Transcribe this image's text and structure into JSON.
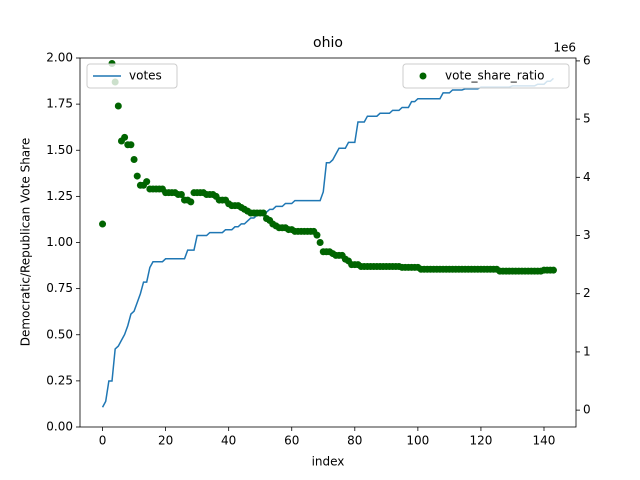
{
  "chart_data": {
    "type": "line",
    "title": "ohio",
    "x_label": "index",
    "y_label": "Democratic/Republican Vote Share",
    "y2_offset_label": "1e6",
    "x": [
      0,
      1,
      2,
      3,
      4,
      5,
      6,
      7,
      8,
      9,
      10,
      11,
      12,
      13,
      14,
      15,
      16,
      17,
      18,
      19,
      20,
      21,
      22,
      23,
      24,
      25,
      26,
      27,
      28,
      29,
      30,
      31,
      32,
      33,
      34,
      35,
      36,
      37,
      38,
      39,
      40,
      41,
      42,
      43,
      44,
      45,
      46,
      47,
      48,
      49,
      50,
      51,
      52,
      53,
      54,
      55,
      56,
      57,
      58,
      59,
      60,
      61,
      62,
      63,
      64,
      65,
      66,
      67,
      68,
      69,
      70,
      71,
      72,
      73,
      74,
      75,
      76,
      77,
      78,
      79,
      80,
      81,
      82,
      83,
      84,
      85,
      86,
      87,
      88,
      89,
      90,
      91,
      92,
      93,
      94,
      95,
      96,
      97,
      98,
      99,
      100,
      101,
      102,
      103,
      104,
      105,
      106,
      107,
      108,
      109,
      110,
      111,
      112,
      113,
      114,
      115,
      116,
      117,
      118,
      119,
      120,
      121,
      122,
      123,
      124,
      125,
      126,
      127,
      128,
      129,
      130,
      131,
      132,
      133,
      134,
      135,
      136,
      137,
      138,
      139,
      140,
      141,
      142,
      143
    ],
    "xlim": [
      -7.15,
      150.15
    ],
    "xticks": [
      0,
      20,
      40,
      60,
      80,
      100,
      120,
      140
    ],
    "ylim": [
      0,
      2
    ],
    "yticks": [
      {
        "value": 0,
        "label": "0.00"
      },
      {
        "value": 0.25,
        "label": "0.25"
      },
      {
        "value": 0.5,
        "label": "0.50"
      },
      {
        "value": 0.75,
        "label": "0.75"
      },
      {
        "value": 1,
        "label": "1.00"
      },
      {
        "value": 1.25,
        "label": "1.25"
      },
      {
        "value": 1.5,
        "label": "1.50"
      },
      {
        "value": 1.75,
        "label": "1.75"
      },
      {
        "value": 2,
        "label": "2.00"
      }
    ],
    "y2lim": [
      -0.29,
      6.05
    ],
    "y2ticks": [
      0,
      1,
      2,
      3,
      4,
      5,
      6
    ],
    "series": [
      {
        "name": "votes",
        "type": "line",
        "axis": "y2",
        "color": "#1f77b4",
        "legend": "upper left",
        "values": [
          0.05,
          0.15,
          0.5,
          0.5,
          1.05,
          1.1,
          1.2,
          1.3,
          1.45,
          1.65,
          1.7,
          1.85,
          2.0,
          2.2,
          2.2,
          2.45,
          2.55,
          2.55,
          2.55,
          2.55,
          2.6,
          2.6,
          2.6,
          2.6,
          2.6,
          2.6,
          2.6,
          2.75,
          2.75,
          2.75,
          3.0,
          3.0,
          3.0,
          3.0,
          3.05,
          3.05,
          3.05,
          3.05,
          3.05,
          3.1,
          3.1,
          3.1,
          3.15,
          3.15,
          3.2,
          3.2,
          3.25,
          3.3,
          3.3,
          3.35,
          3.35,
          3.35,
          3.4,
          3.45,
          3.45,
          3.5,
          3.5,
          3.5,
          3.55,
          3.55,
          3.55,
          3.6,
          3.6,
          3.6,
          3.6,
          3.6,
          3.6,
          3.6,
          3.6,
          3.6,
          3.75,
          4.25,
          4.25,
          4.3,
          4.4,
          4.5,
          4.5,
          4.5,
          4.6,
          4.6,
          4.6,
          4.95,
          4.95,
          4.95,
          5.05,
          5.05,
          5.05,
          5.05,
          5.1,
          5.1,
          5.1,
          5.1,
          5.15,
          5.15,
          5.15,
          5.2,
          5.2,
          5.2,
          5.3,
          5.3,
          5.35,
          5.35,
          5.35,
          5.35,
          5.35,
          5.35,
          5.35,
          5.35,
          5.45,
          5.45,
          5.45,
          5.5,
          5.5,
          5.5,
          5.5,
          5.52,
          5.52,
          5.52,
          5.52,
          5.52,
          5.55,
          5.55,
          5.55,
          5.55,
          5.55,
          5.55,
          5.55,
          5.55,
          5.55,
          5.55,
          5.57,
          5.57,
          5.57,
          5.57,
          5.57,
          5.57,
          5.57,
          5.57,
          5.6,
          5.6,
          5.6,
          5.65,
          5.65,
          5.7
        ]
      },
      {
        "name": "vote_share_ratio",
        "type": "scatter",
        "color": "#006400",
        "legend": "upper right",
        "values": [
          1.1,
          null,
          null,
          1.97,
          1.87,
          1.74,
          1.55,
          1.57,
          1.53,
          1.53,
          1.45,
          1.36,
          1.31,
          1.31,
          1.33,
          1.29,
          1.29,
          1.29,
          1.29,
          1.29,
          1.27,
          1.27,
          1.27,
          1.27,
          1.26,
          1.26,
          1.23,
          1.23,
          1.22,
          1.27,
          1.27,
          1.27,
          1.27,
          1.26,
          1.26,
          1.26,
          1.25,
          1.23,
          1.23,
          1.23,
          1.21,
          1.2,
          1.2,
          1.2,
          1.19,
          1.18,
          1.17,
          1.16,
          1.16,
          1.16,
          1.16,
          1.16,
          1.13,
          1.12,
          1.1,
          1.09,
          1.08,
          1.08,
          1.08,
          1.07,
          1.07,
          1.06,
          1.06,
          1.06,
          1.06,
          1.06,
          1.06,
          1.06,
          1.04,
          1.0,
          0.95,
          0.95,
          0.95,
          0.94,
          0.93,
          0.93,
          0.93,
          0.91,
          0.9,
          0.88,
          0.88,
          0.88,
          0.87,
          0.87,
          0.87,
          0.87,
          0.87,
          0.87,
          0.87,
          0.87,
          0.87,
          0.87,
          0.87,
          0.87,
          0.87,
          0.865,
          0.865,
          0.865,
          0.865,
          0.865,
          0.865,
          0.855,
          0.855,
          0.855,
          0.855,
          0.855,
          0.855,
          0.855,
          0.855,
          0.855,
          0.855,
          0.855,
          0.855,
          0.855,
          0.855,
          0.855,
          0.855,
          0.855,
          0.855,
          0.855,
          0.855,
          0.855,
          0.855,
          0.855,
          0.855,
          0.855,
          0.845,
          0.845,
          0.845,
          0.845,
          0.845,
          0.845,
          0.845,
          0.845,
          0.845,
          0.845,
          0.845,
          0.845,
          0.845,
          0.845,
          0.85,
          0.85,
          0.85,
          0.85
        ]
      }
    ]
  }
}
